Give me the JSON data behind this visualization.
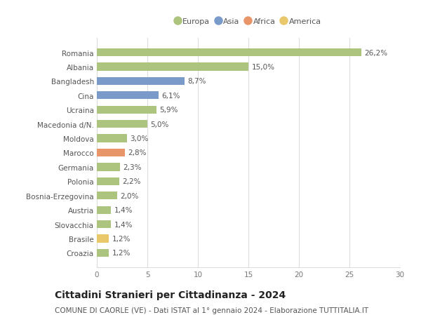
{
  "categories": [
    "Romania",
    "Albania",
    "Bangladesh",
    "Cina",
    "Ucraina",
    "Macedonia d/N.",
    "Moldova",
    "Marocco",
    "Germania",
    "Polonia",
    "Bosnia-Erzegovina",
    "Austria",
    "Slovacchia",
    "Brasile",
    "Croazia"
  ],
  "values": [
    26.2,
    15.0,
    8.7,
    6.1,
    5.9,
    5.0,
    3.0,
    2.8,
    2.3,
    2.2,
    2.0,
    1.4,
    1.4,
    1.2,
    1.2
  ],
  "labels": [
    "26,2%",
    "15,0%",
    "8,7%",
    "6,1%",
    "5,9%",
    "5,0%",
    "3,0%",
    "2,8%",
    "2,3%",
    "2,2%",
    "2,0%",
    "1,4%",
    "1,4%",
    "1,2%",
    "1,2%"
  ],
  "colors": [
    "#adc47e",
    "#adc47e",
    "#7a9bc9",
    "#7a9bc9",
    "#adc47e",
    "#adc47e",
    "#adc47e",
    "#e8956a",
    "#adc47e",
    "#adc47e",
    "#adc47e",
    "#adc47e",
    "#adc47e",
    "#e8c86a",
    "#adc47e"
  ],
  "legend_labels": [
    "Europa",
    "Asia",
    "Africa",
    "America"
  ],
  "legend_colors": [
    "#adc47e",
    "#7a9bc9",
    "#e8956a",
    "#e8c86a"
  ],
  "title": "Cittadini Stranieri per Cittadinanza - 2024",
  "subtitle": "COMUNE DI CAORLE (VE) - Dati ISTAT al 1° gennaio 2024 - Elaborazione TUTTITALIA.IT",
  "xlim": [
    0,
    30
  ],
  "xticks": [
    0,
    5,
    10,
    15,
    20,
    25,
    30
  ],
  "bg_color": "#ffffff",
  "grid_color": "#dddddd",
  "bar_height": 0.55,
  "label_fontsize": 7.5,
  "title_fontsize": 10,
  "subtitle_fontsize": 7.5,
  "ytick_fontsize": 7.5,
  "xtick_fontsize": 7.5
}
